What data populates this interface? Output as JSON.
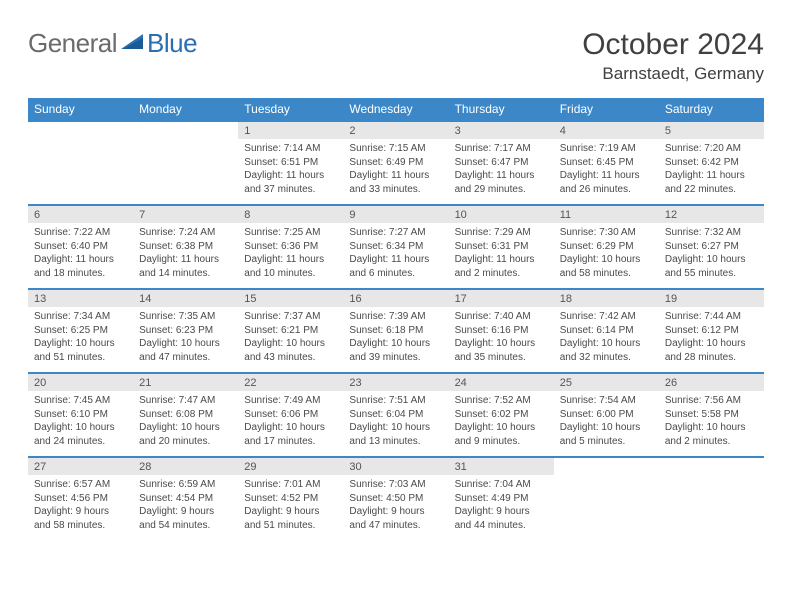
{
  "logo": {
    "part1": "General",
    "part2": "Blue"
  },
  "title": "October 2024",
  "location": "Barnstaedt, Germany",
  "header_color": "#3b87c8",
  "daynum_bg": "#e7e7e7",
  "text_color": "#4a4a4a",
  "days_of_week": [
    "Sunday",
    "Monday",
    "Tuesday",
    "Wednesday",
    "Thursday",
    "Friday",
    "Saturday"
  ],
  "weeks": [
    [
      null,
      null,
      {
        "n": "1",
        "sr": "Sunrise: 7:14 AM",
        "ss": "Sunset: 6:51 PM",
        "dl": "Daylight: 11 hours and 37 minutes."
      },
      {
        "n": "2",
        "sr": "Sunrise: 7:15 AM",
        "ss": "Sunset: 6:49 PM",
        "dl": "Daylight: 11 hours and 33 minutes."
      },
      {
        "n": "3",
        "sr": "Sunrise: 7:17 AM",
        "ss": "Sunset: 6:47 PM",
        "dl": "Daylight: 11 hours and 29 minutes."
      },
      {
        "n": "4",
        "sr": "Sunrise: 7:19 AM",
        "ss": "Sunset: 6:45 PM",
        "dl": "Daylight: 11 hours and 26 minutes."
      },
      {
        "n": "5",
        "sr": "Sunrise: 7:20 AM",
        "ss": "Sunset: 6:42 PM",
        "dl": "Daylight: 11 hours and 22 minutes."
      }
    ],
    [
      {
        "n": "6",
        "sr": "Sunrise: 7:22 AM",
        "ss": "Sunset: 6:40 PM",
        "dl": "Daylight: 11 hours and 18 minutes."
      },
      {
        "n": "7",
        "sr": "Sunrise: 7:24 AM",
        "ss": "Sunset: 6:38 PM",
        "dl": "Daylight: 11 hours and 14 minutes."
      },
      {
        "n": "8",
        "sr": "Sunrise: 7:25 AM",
        "ss": "Sunset: 6:36 PM",
        "dl": "Daylight: 11 hours and 10 minutes."
      },
      {
        "n": "9",
        "sr": "Sunrise: 7:27 AM",
        "ss": "Sunset: 6:34 PM",
        "dl": "Daylight: 11 hours and 6 minutes."
      },
      {
        "n": "10",
        "sr": "Sunrise: 7:29 AM",
        "ss": "Sunset: 6:31 PM",
        "dl": "Daylight: 11 hours and 2 minutes."
      },
      {
        "n": "11",
        "sr": "Sunrise: 7:30 AM",
        "ss": "Sunset: 6:29 PM",
        "dl": "Daylight: 10 hours and 58 minutes."
      },
      {
        "n": "12",
        "sr": "Sunrise: 7:32 AM",
        "ss": "Sunset: 6:27 PM",
        "dl": "Daylight: 10 hours and 55 minutes."
      }
    ],
    [
      {
        "n": "13",
        "sr": "Sunrise: 7:34 AM",
        "ss": "Sunset: 6:25 PM",
        "dl": "Daylight: 10 hours and 51 minutes."
      },
      {
        "n": "14",
        "sr": "Sunrise: 7:35 AM",
        "ss": "Sunset: 6:23 PM",
        "dl": "Daylight: 10 hours and 47 minutes."
      },
      {
        "n": "15",
        "sr": "Sunrise: 7:37 AM",
        "ss": "Sunset: 6:21 PM",
        "dl": "Daylight: 10 hours and 43 minutes."
      },
      {
        "n": "16",
        "sr": "Sunrise: 7:39 AM",
        "ss": "Sunset: 6:18 PM",
        "dl": "Daylight: 10 hours and 39 minutes."
      },
      {
        "n": "17",
        "sr": "Sunrise: 7:40 AM",
        "ss": "Sunset: 6:16 PM",
        "dl": "Daylight: 10 hours and 35 minutes."
      },
      {
        "n": "18",
        "sr": "Sunrise: 7:42 AM",
        "ss": "Sunset: 6:14 PM",
        "dl": "Daylight: 10 hours and 32 minutes."
      },
      {
        "n": "19",
        "sr": "Sunrise: 7:44 AM",
        "ss": "Sunset: 6:12 PM",
        "dl": "Daylight: 10 hours and 28 minutes."
      }
    ],
    [
      {
        "n": "20",
        "sr": "Sunrise: 7:45 AM",
        "ss": "Sunset: 6:10 PM",
        "dl": "Daylight: 10 hours and 24 minutes."
      },
      {
        "n": "21",
        "sr": "Sunrise: 7:47 AM",
        "ss": "Sunset: 6:08 PM",
        "dl": "Daylight: 10 hours and 20 minutes."
      },
      {
        "n": "22",
        "sr": "Sunrise: 7:49 AM",
        "ss": "Sunset: 6:06 PM",
        "dl": "Daylight: 10 hours and 17 minutes."
      },
      {
        "n": "23",
        "sr": "Sunrise: 7:51 AM",
        "ss": "Sunset: 6:04 PM",
        "dl": "Daylight: 10 hours and 13 minutes."
      },
      {
        "n": "24",
        "sr": "Sunrise: 7:52 AM",
        "ss": "Sunset: 6:02 PM",
        "dl": "Daylight: 10 hours and 9 minutes."
      },
      {
        "n": "25",
        "sr": "Sunrise: 7:54 AM",
        "ss": "Sunset: 6:00 PM",
        "dl": "Daylight: 10 hours and 5 minutes."
      },
      {
        "n": "26",
        "sr": "Sunrise: 7:56 AM",
        "ss": "Sunset: 5:58 PM",
        "dl": "Daylight: 10 hours and 2 minutes."
      }
    ],
    [
      {
        "n": "27",
        "sr": "Sunrise: 6:57 AM",
        "ss": "Sunset: 4:56 PM",
        "dl": "Daylight: 9 hours and 58 minutes."
      },
      {
        "n": "28",
        "sr": "Sunrise: 6:59 AM",
        "ss": "Sunset: 4:54 PM",
        "dl": "Daylight: 9 hours and 54 minutes."
      },
      {
        "n": "29",
        "sr": "Sunrise: 7:01 AM",
        "ss": "Sunset: 4:52 PM",
        "dl": "Daylight: 9 hours and 51 minutes."
      },
      {
        "n": "30",
        "sr": "Sunrise: 7:03 AM",
        "ss": "Sunset: 4:50 PM",
        "dl": "Daylight: 9 hours and 47 minutes."
      },
      {
        "n": "31",
        "sr": "Sunrise: 7:04 AM",
        "ss": "Sunset: 4:49 PM",
        "dl": "Daylight: 9 hours and 44 minutes."
      },
      null,
      null
    ]
  ]
}
